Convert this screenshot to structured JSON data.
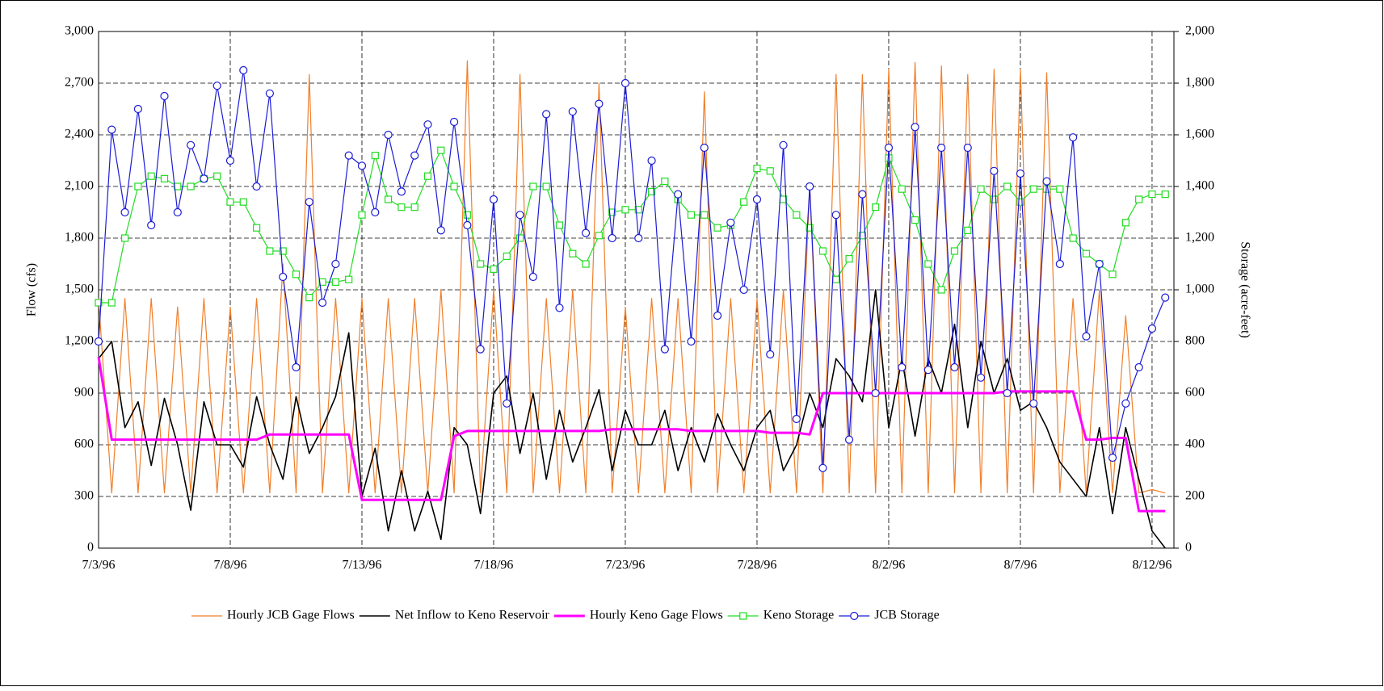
{
  "chart_data": {
    "type": "line",
    "y_label": "Flow (cfs)",
    "y2_label": "Storage (acre-feet)",
    "grid": true,
    "legend": "bottom",
    "xlim": [
      0,
      40.83
    ],
    "xticks": [
      {
        "value": 0,
        "label": "7/3/96"
      },
      {
        "value": 5,
        "label": "7/8/96"
      },
      {
        "value": 10,
        "label": "7/13/96"
      },
      {
        "value": 15,
        "label": "7/18/96"
      },
      {
        "value": 20,
        "label": "7/23/96"
      },
      {
        "value": 25,
        "label": "7/28/96"
      },
      {
        "value": 30,
        "label": "8/2/96"
      },
      {
        "value": 35,
        "label": "8/7/96"
      },
      {
        "value": 40,
        "label": "8/12/96"
      }
    ],
    "ylim": [
      0,
      3000
    ],
    "yticks": [
      0,
      300,
      600,
      900,
      {
        "value": 1200,
        "label": "1,200"
      },
      {
        "value": 1500,
        "label": "1,500"
      },
      {
        "value": 1800,
        "label": "1,800"
      },
      {
        "value": 2100,
        "label": "2,100"
      },
      {
        "value": 2400,
        "label": "2,400"
      },
      {
        "value": 2700,
        "label": "2,700"
      },
      {
        "value": 3000,
        "label": "3,000"
      }
    ],
    "y2lim": [
      0,
      2000
    ],
    "y2ticks": [
      0,
      200,
      400,
      600,
      800,
      {
        "value": 1000,
        "label": "1,000"
      },
      {
        "value": 1200,
        "label": "1,200"
      },
      {
        "value": 1400,
        "label": "1,400"
      },
      {
        "value": 1600,
        "label": "1,600"
      },
      {
        "value": 1800,
        "label": "1,800"
      },
      {
        "value": 2000,
        "label": "2,000"
      }
    ],
    "x": [
      0,
      0.5,
      1,
      1.5,
      2,
      2.5,
      3,
      3.5,
      4,
      4.5,
      5,
      5.5,
      6,
      6.5,
      7,
      7.5,
      8,
      8.5,
      9,
      9.5,
      10,
      10.5,
      11,
      11.5,
      12,
      12.5,
      13,
      13.5,
      14,
      14.5,
      15,
      15.5,
      16,
      16.5,
      17,
      17.5,
      18,
      18.5,
      19,
      19.5,
      20,
      20.5,
      21,
      21.5,
      22,
      22.5,
      23,
      23.5,
      24,
      24.5,
      25,
      25.5,
      26,
      26.5,
      27,
      27.5,
      28,
      28.5,
      29,
      29.5,
      30,
      30.5,
      31,
      31.5,
      32,
      32.5,
      33,
      33.5,
      34,
      34.5,
      35,
      35.5,
      36,
      36.5,
      37,
      37.5,
      38,
      38.5,
      39,
      39.5,
      40,
      40.5
    ],
    "series": [
      {
        "name": "Hourly JCB Gage Flows",
        "color": "#f07f2a",
        "width": 1.2,
        "marker": "none",
        "values": [
          1450,
          320,
          1450,
          320,
          1450,
          320,
          1400,
          320,
          1450,
          320,
          1400,
          320,
          1450,
          320,
          1650,
          320,
          2750,
          320,
          1450,
          320,
          1450,
          320,
          1450,
          320,
          1450,
          320,
          1500,
          320,
          2830,
          320,
          1500,
          320,
          2750,
          320,
          1450,
          320,
          1500,
          320,
          2700,
          320,
          1400,
          320,
          1450,
          320,
          1450,
          320,
          2650,
          320,
          1450,
          320,
          1450,
          320,
          1500,
          320,
          2100,
          320,
          2750,
          320,
          2750,
          320,
          2780,
          320,
          2820,
          320,
          2800,
          320,
          2750,
          320,
          2780,
          320,
          2780,
          320,
          2760,
          320,
          1450,
          320,
          1500,
          320,
          1350,
          320,
          340,
          320
        ]
      },
      {
        "name": "Net Inflow to Keno Reservoir",
        "color": "#000000",
        "width": 1.6,
        "marker": "none",
        "values": [
          1100,
          1200,
          700,
          850,
          480,
          870,
          600,
          220,
          850,
          600,
          600,
          470,
          880,
          600,
          400,
          880,
          550,
          700,
          880,
          1250,
          300,
          580,
          100,
          450,
          100,
          330,
          50,
          700,
          600,
          200,
          900,
          1000,
          550,
          900,
          400,
          800,
          500,
          700,
          920,
          450,
          800,
          600,
          600,
          800,
          450,
          700,
          500,
          780,
          600,
          450,
          700,
          800,
          450,
          600,
          900,
          700,
          1100,
          1000,
          850,
          1500,
          700,
          1100,
          650,
          1100,
          900,
          1300,
          700,
          1200,
          900,
          1100,
          800,
          850,
          700,
          500,
          400,
          300,
          700,
          200,
          700,
          400,
          100,
          0
        ]
      },
      {
        "name": "Hourly Keno Gage Flows",
        "color": "#ff00ff",
        "width": 3,
        "marker": "none",
        "values": [
          1110,
          630,
          630,
          630,
          630,
          630,
          630,
          630,
          630,
          630,
          630,
          630,
          630,
          660,
          660,
          660,
          660,
          660,
          660,
          660,
          280,
          280,
          280,
          280,
          280,
          280,
          280,
          650,
          680,
          680,
          680,
          680,
          680,
          680,
          680,
          680,
          680,
          680,
          680,
          690,
          690,
          690,
          690,
          690,
          690,
          680,
          680,
          680,
          680,
          680,
          680,
          670,
          670,
          670,
          660,
          900,
          900,
          900,
          900,
          900,
          900,
          900,
          900,
          900,
          900,
          900,
          900,
          900,
          900,
          910,
          910,
          910,
          910,
          910,
          910,
          630,
          630,
          640,
          640,
          215,
          215,
          215
        ]
      },
      {
        "name": "Keno Storage",
        "color": "#22dd22",
        "width": 1.2,
        "marker": "square",
        "axis": "y2",
        "values": [
          950,
          950,
          1200,
          1400,
          1440,
          1430,
          1400,
          1400,
          1430,
          1440,
          1340,
          1340,
          1240,
          1150,
          1150,
          1060,
          970,
          1030,
          1030,
          1040,
          1290,
          1520,
          1350,
          1320,
          1320,
          1440,
          1540,
          1400,
          1290,
          1100,
          1080,
          1130,
          1200,
          1400,
          1400,
          1250,
          1140,
          1100,
          1210,
          1300,
          1310,
          1310,
          1380,
          1420,
          1350,
          1290,
          1290,
          1240,
          1250,
          1340,
          1470,
          1460,
          1350,
          1290,
          1240,
          1150,
          1040,
          1120,
          1210,
          1320,
          1510,
          1390,
          1270,
          1100,
          1000,
          1150,
          1230,
          1390,
          1350,
          1400,
          1340,
          1390,
          1390,
          1390,
          1200,
          1140,
          1100,
          1060,
          1260,
          1350,
          1370,
          1370
        ]
      },
      {
        "name": "JCB Storage",
        "color": "#1c1cd6",
        "width": 1.2,
        "marker": "circle",
        "axis": "y2",
        "values": [
          800,
          1620,
          1300,
          1700,
          1250,
          1750,
          1300,
          1560,
          1430,
          1790,
          1500,
          1850,
          1400,
          1760,
          1050,
          700,
          1340,
          950,
          1100,
          1520,
          1480,
          1300,
          1600,
          1380,
          1520,
          1640,
          1230,
          1650,
          1250,
          770,
          1350,
          560,
          1290,
          1050,
          1680,
          930,
          1690,
          1220,
          1720,
          1200,
          1800,
          1200,
          1500,
          770,
          1370,
          800,
          1550,
          900,
          1260,
          1000,
          1350,
          750,
          1560,
          500,
          1400,
          310,
          1290,
          420,
          1370,
          600,
          1550,
          700,
          1630,
          690,
          1550,
          700,
          1550,
          660,
          1460,
          600,
          1450,
          560,
          1420,
          1100,
          1590,
          820,
          1100,
          350,
          560,
          700,
          850,
          970
        ]
      }
    ]
  }
}
